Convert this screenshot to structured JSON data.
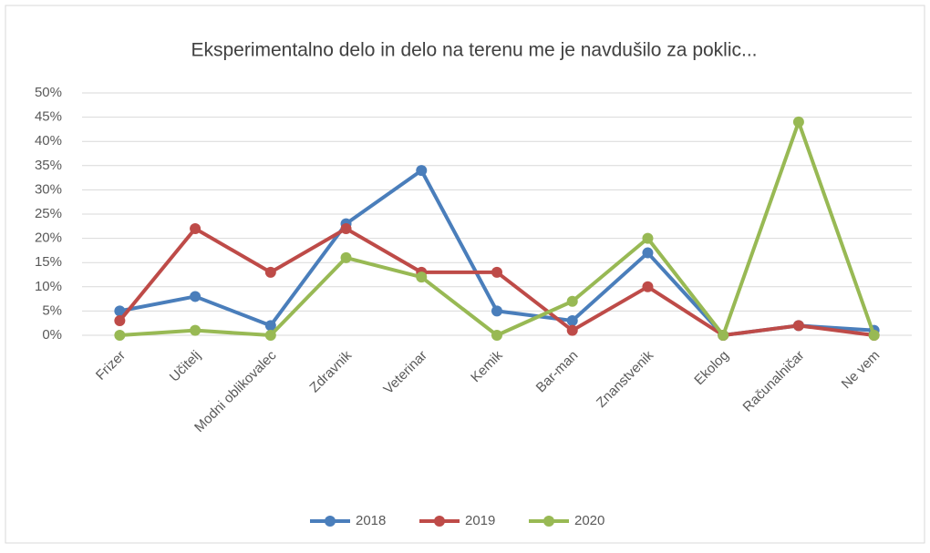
{
  "chart_data": {
    "type": "line",
    "title": "Eksperimentalno delo in delo na terenu me je navdušilo za poklic...",
    "categories": [
      "Frizer",
      "Učitelj",
      "Modni oblikovalec",
      "Zdravnik",
      "Veterinar",
      "Kemik",
      "Bar-man",
      "Znanstvenik",
      "Ekolog",
      "Računalničar",
      "Ne vem"
    ],
    "series": [
      {
        "name": "2018",
        "color": "#4a7ebb",
        "values": [
          5,
          8,
          2,
          23,
          34,
          5,
          3,
          17,
          0,
          2,
          1
        ]
      },
      {
        "name": "2019",
        "color": "#be4b48",
        "values": [
          3,
          22,
          13,
          22,
          13,
          13,
          1,
          10,
          0,
          2,
          0
        ]
      },
      {
        "name": "2020",
        "color": "#98b954",
        "values": [
          0,
          1,
          0,
          16,
          12,
          0,
          7,
          20,
          0,
          44,
          0
        ]
      }
    ],
    "ylim": [
      0,
      50
    ],
    "yticks": [
      {
        "value": 0,
        "label": "0%"
      },
      {
        "value": 5,
        "label": "5%"
      },
      {
        "value": 10,
        "label": "10%"
      },
      {
        "value": 15,
        "label": "15%"
      },
      {
        "value": 20,
        "label": "20%"
      },
      {
        "value": 25,
        "label": "25%"
      },
      {
        "value": 30,
        "label": "30%"
      },
      {
        "value": 35,
        "label": "35%"
      },
      {
        "value": 40,
        "label": "40%"
      },
      {
        "value": 45,
        "label": "45%"
      },
      {
        "value": 50,
        "label": "50%"
      }
    ],
    "grid": true,
    "legend": "bottom"
  }
}
